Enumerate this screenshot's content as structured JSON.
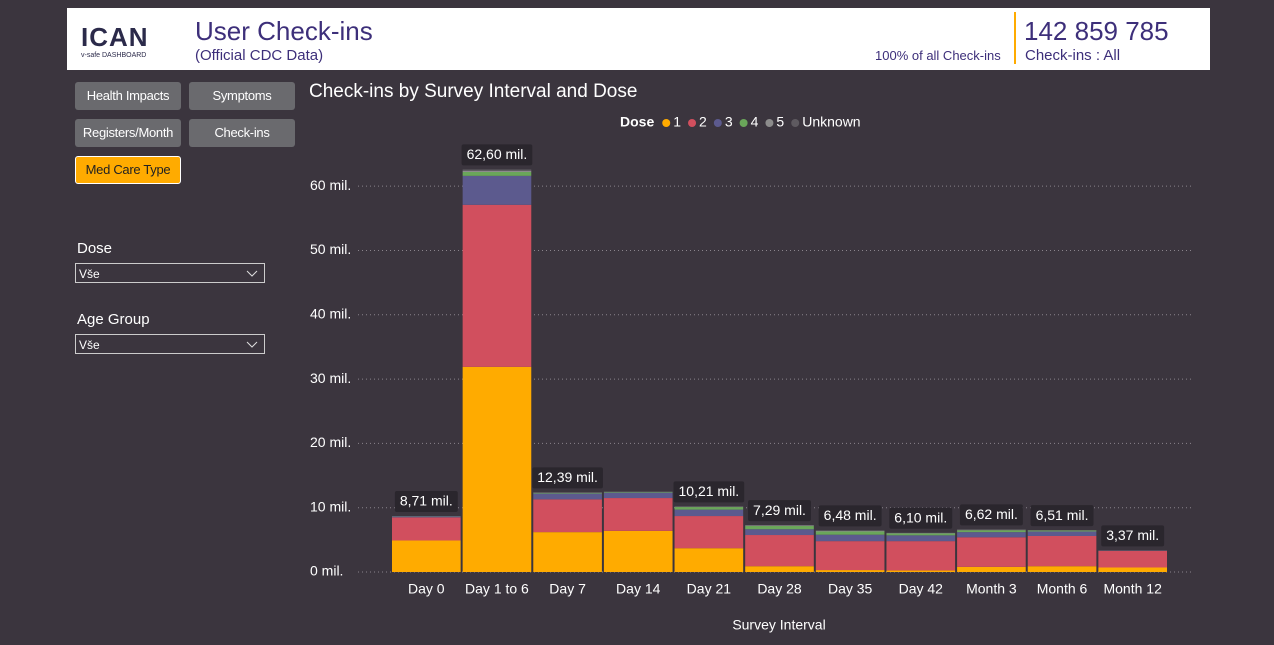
{
  "header": {
    "logo": "ICAN",
    "logo_sub": "v-safe DASHBOARD",
    "title": "User Check-ins",
    "subtitle": "(Official CDC Data)",
    "share": "100% of all Check-ins",
    "count": "142 859 785",
    "count_label": "Check-ins : All"
  },
  "nav": {
    "buttons": [
      "Health Impacts",
      "Symptoms",
      "Registers/Month",
      "Check-ins",
      "Med Care Type"
    ]
  },
  "filters": [
    {
      "label": "Dose",
      "value": "Vše"
    },
    {
      "label": "Age Group",
      "value": "Vše"
    }
  ],
  "chart_data": {
    "type": "stacked_bar",
    "title": "Check-ins by Survey Interval and Dose",
    "legend_title": "Dose",
    "x_label": "Survey Interval",
    "categories": [
      "Day 0",
      "Day 1 to 6",
      "Day 7",
      "Day 14",
      "Day 21",
      "Day 28",
      "Day 35",
      "Day 42",
      "Month 3",
      "Month 6",
      "Month 12"
    ],
    "series": [
      {
        "name": "1",
        "color": "#ffab00",
        "values": [
          4.9,
          31.9,
          6.2,
          6.4,
          3.7,
          0.9,
          0.3,
          0.25,
          0.8,
          0.9,
          0.7
        ]
      },
      {
        "name": "2",
        "color": "#d14f5e",
        "values": [
          3.6,
          25.2,
          5.1,
          5.1,
          5.0,
          4.85,
          4.5,
          4.55,
          4.6,
          4.7,
          2.6
        ]
      },
      {
        "name": "3",
        "color": "#5c5a8e",
        "values": [
          0.15,
          4.5,
          0.9,
          0.85,
          1.0,
          0.9,
          1.0,
          0.9,
          0.8,
          0.7,
          0.05
        ]
      },
      {
        "name": "4",
        "color": "#6aa65a",
        "values": [
          0.04,
          0.6,
          0.1,
          0.1,
          0.4,
          0.5,
          0.5,
          0.3,
          0.3,
          0.15,
          0.01
        ]
      },
      {
        "name": "5",
        "color": "#8c8c8c",
        "values": [
          0.01,
          0.2,
          0.05,
          0.03,
          0.06,
          0.1,
          0.12,
          0.06,
          0.08,
          0.04,
          0.005
        ]
      },
      {
        "name": "Unknown",
        "color": "#5e5a60",
        "values": [
          0.01,
          0.2,
          0.04,
          0.02,
          0.05,
          0.04,
          0.06,
          0.04,
          0.04,
          0.02,
          0.005
        ]
      }
    ],
    "totals": [
      8.71,
      62.6,
      12.39,
      null,
      10.21,
      7.29,
      6.48,
      6.1,
      6.62,
      6.51,
      3.37
    ],
    "total_labels": [
      "8,71 mil.",
      "62,60 mil.",
      "12,39 mil.",
      null,
      "10,21 mil.",
      "7,29 mil.",
      "6,48 mil.",
      "6,10 mil.",
      "6,62 mil.",
      "6,51 mil.",
      "3,37 mil."
    ],
    "ylim": [
      0,
      65
    ],
    "yticks": [
      {
        "value": 0,
        "label": "0 mil."
      },
      {
        "value": 10,
        "label": "10 mil."
      },
      {
        "value": 20,
        "label": "20 mil."
      },
      {
        "value": 30,
        "label": "30 mil."
      },
      {
        "value": 40,
        "label": "40 mil."
      },
      {
        "value": 50,
        "label": "50 mil."
      },
      {
        "value": 60,
        "label": "60 mil."
      }
    ],
    "grid": true
  }
}
